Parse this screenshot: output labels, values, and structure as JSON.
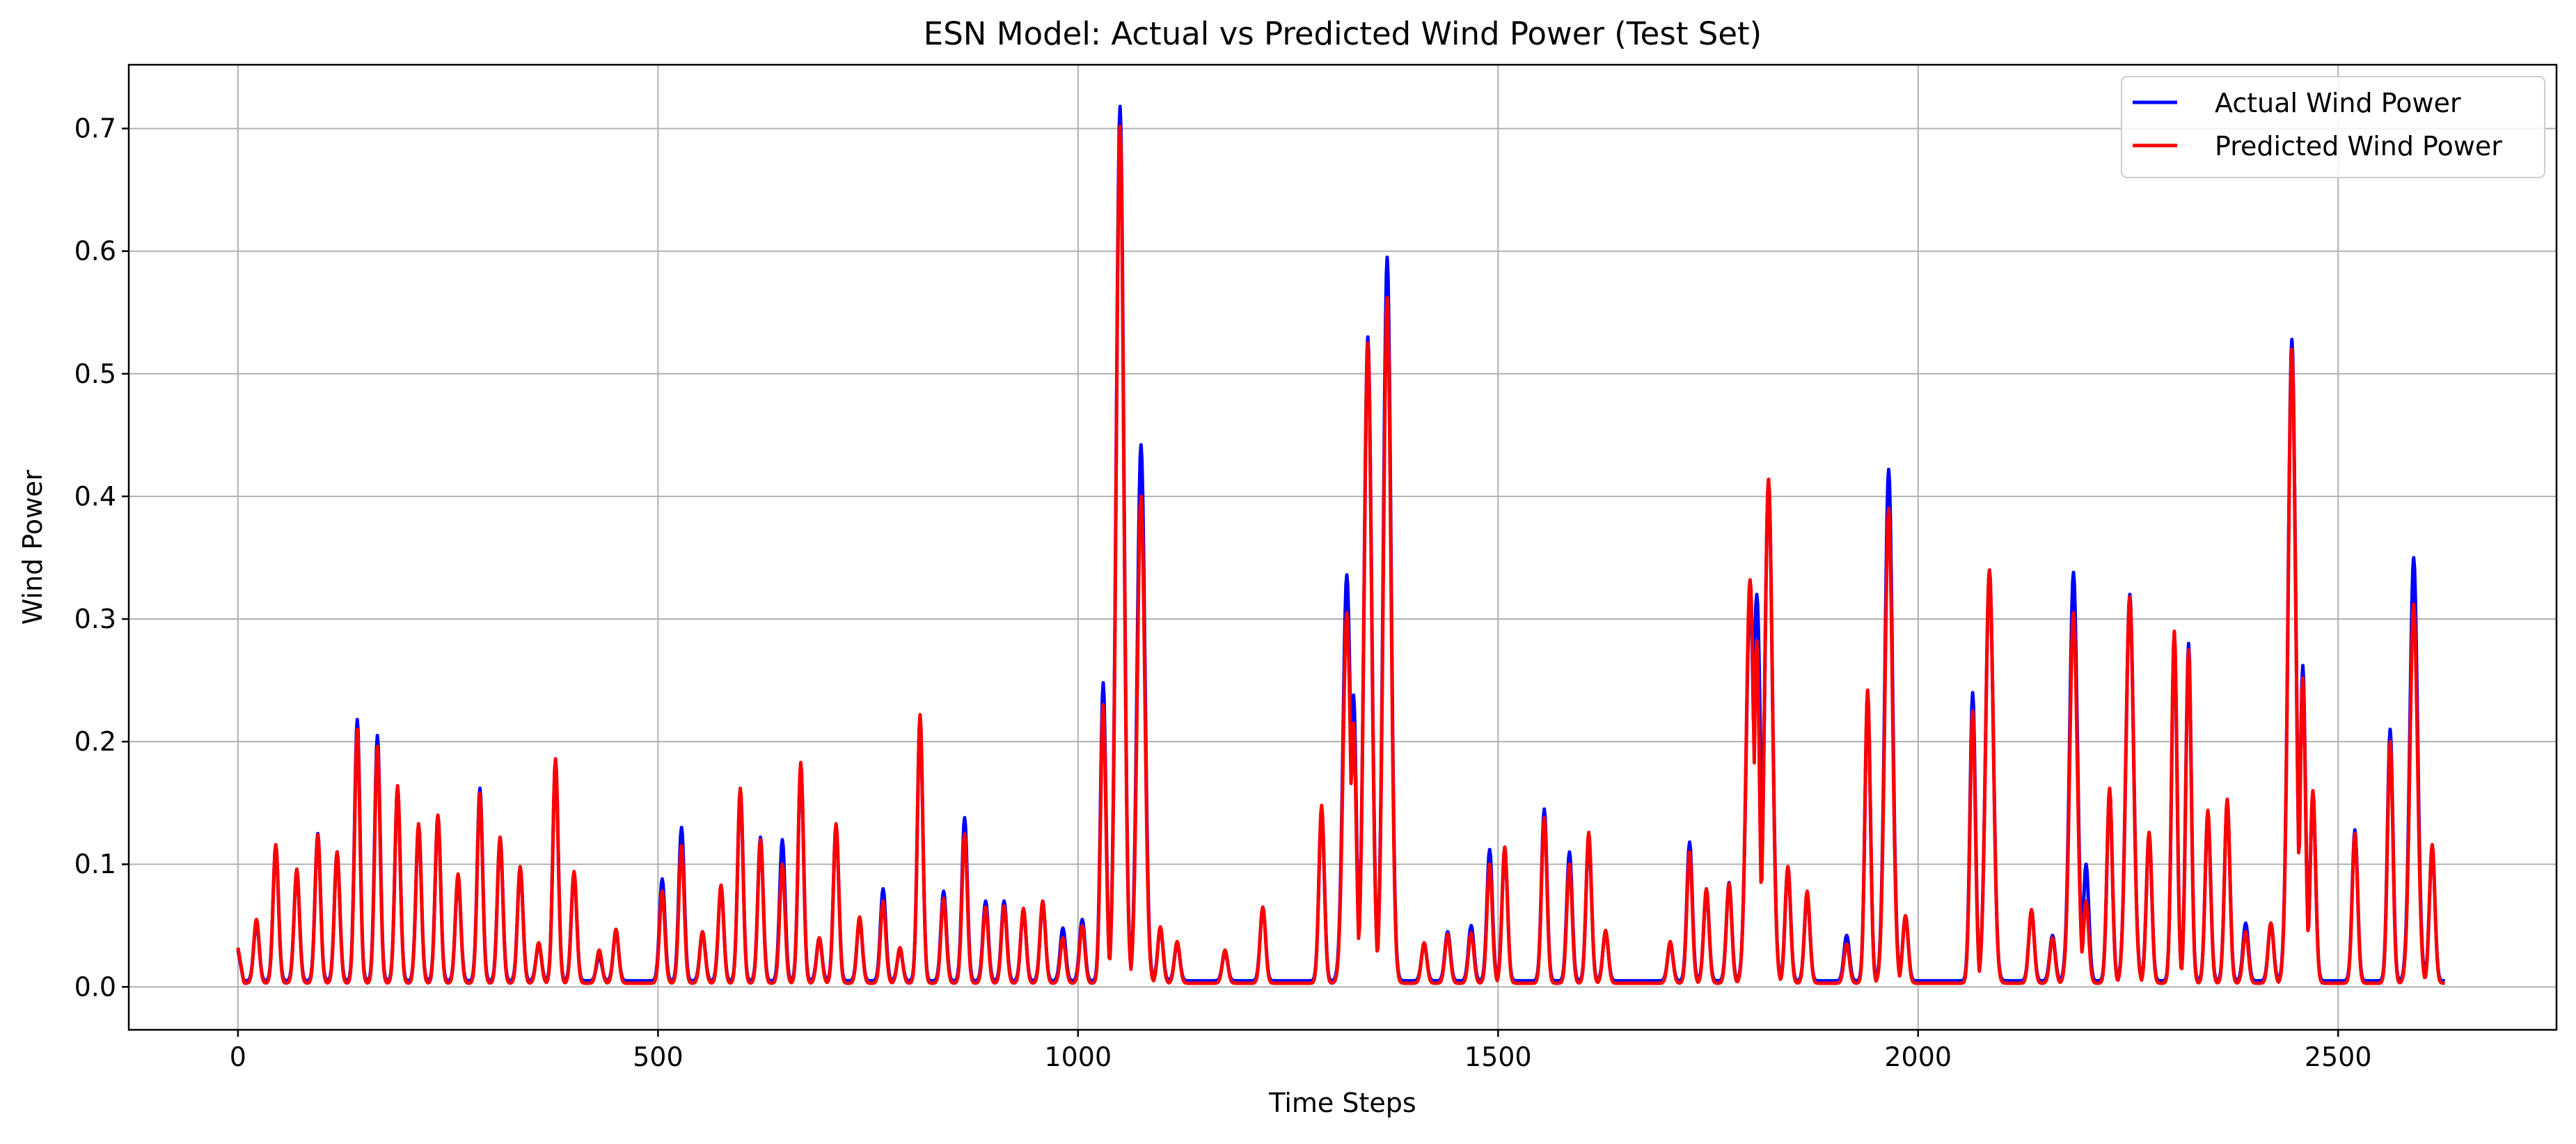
{
  "chart_data": {
    "type": "line",
    "title": "ESN Model: Actual vs Predicted Wind Power (Test Set)",
    "xlabel": "Time Steps",
    "ylabel": "Wind Power",
    "xlim": [
      -130,
      2760
    ],
    "ylim": [
      -0.035,
      0.752
    ],
    "x_ticks": [
      0,
      500,
      1000,
      1500,
      2000,
      2500
    ],
    "y_ticks": [
      0.0,
      0.1,
      0.2,
      0.3,
      0.4,
      0.5,
      0.6,
      0.7
    ],
    "x_tick_labels": [
      "0",
      "500",
      "1000",
      "1500",
      "2000",
      "2500"
    ],
    "y_tick_labels": [
      "0.0",
      "0.1",
      "0.2",
      "0.3",
      "0.4",
      "0.5",
      "0.6",
      "0.7"
    ],
    "grid": true,
    "legend_position": "top-right",
    "n_points": 2628,
    "series": [
      {
        "name": "Actual Wind Power",
        "color": "#0000ff",
        "base_level": 0.005,
        "start_value": 0.03,
        "peaks": [
          [
            22,
            0.052
          ],
          [
            45,
            0.115
          ],
          [
            70,
            0.095
          ],
          [
            95,
            0.125
          ],
          [
            118,
            0.11
          ],
          [
            142,
            0.218
          ],
          [
            166,
            0.205
          ],
          [
            190,
            0.162
          ],
          [
            215,
            0.132
          ],
          [
            238,
            0.14
          ],
          [
            262,
            0.09
          ],
          [
            288,
            0.162
          ],
          [
            312,
            0.122
          ],
          [
            336,
            0.098
          ],
          [
            358,
            0.035
          ],
          [
            378,
            0.185
          ],
          [
            400,
            0.093
          ],
          [
            430,
            0.025
          ],
          [
            450,
            0.045
          ],
          [
            505,
            0.088
          ],
          [
            528,
            0.13
          ],
          [
            553,
            0.045
          ],
          [
            575,
            0.082
          ],
          [
            598,
            0.16
          ],
          [
            622,
            0.122
          ],
          [
            648,
            0.12
          ],
          [
            670,
            0.18
          ],
          [
            692,
            0.04
          ],
          [
            712,
            0.132
          ],
          [
            740,
            0.055
          ],
          [
            768,
            0.08
          ],
          [
            788,
            0.03
          ],
          [
            812,
            0.22
          ],
          [
            840,
            0.078
          ],
          [
            865,
            0.138
          ],
          [
            890,
            0.07
          ],
          [
            912,
            0.07
          ],
          [
            935,
            0.062
          ],
          [
            958,
            0.068
          ],
          [
            982,
            0.048
          ],
          [
            1005,
            0.055
          ],
          [
            1030,
            0.248
          ],
          [
            1050,
            0.718
          ],
          [
            1075,
            0.442
          ],
          [
            1098,
            0.048
          ],
          [
            1118,
            0.035
          ],
          [
            1175,
            0.028
          ],
          [
            1220,
            0.065
          ],
          [
            1290,
            0.145
          ],
          [
            1320,
            0.336
          ],
          [
            1328,
            0.238
          ],
          [
            1345,
            0.53
          ],
          [
            1368,
            0.595
          ],
          [
            1412,
            0.035
          ],
          [
            1440,
            0.045
          ],
          [
            1468,
            0.05
          ],
          [
            1490,
            0.112
          ],
          [
            1508,
            0.112
          ],
          [
            1555,
            0.145
          ],
          [
            1585,
            0.11
          ],
          [
            1608,
            0.122
          ],
          [
            1628,
            0.045
          ],
          [
            1705,
            0.035
          ],
          [
            1728,
            0.118
          ],
          [
            1748,
            0.078
          ],
          [
            1775,
            0.085
          ],
          [
            1800,
            0.32
          ],
          [
            1808,
            0.32
          ],
          [
            1822,
            0.412
          ],
          [
            1845,
            0.098
          ],
          [
            1868,
            0.075
          ],
          [
            1915,
            0.042
          ],
          [
            1940,
            0.24
          ],
          [
            1965,
            0.422
          ],
          [
            1985,
            0.058
          ],
          [
            2065,
            0.24
          ],
          [
            2085,
            0.34
          ],
          [
            2135,
            0.062
          ],
          [
            2160,
            0.042
          ],
          [
            2185,
            0.338
          ],
          [
            2200,
            0.1
          ],
          [
            2228,
            0.16
          ],
          [
            2252,
            0.32
          ],
          [
            2275,
            0.125
          ],
          [
            2305,
            0.285
          ],
          [
            2322,
            0.28
          ],
          [
            2345,
            0.142
          ],
          [
            2368,
            0.152
          ],
          [
            2390,
            0.052
          ],
          [
            2420,
            0.052
          ],
          [
            2445,
            0.528
          ],
          [
            2458,
            0.262
          ],
          [
            2470,
            0.158
          ],
          [
            2520,
            0.128
          ],
          [
            2562,
            0.21
          ],
          [
            2590,
            0.35
          ],
          [
            2612,
            0.115
          ]
        ]
      },
      {
        "name": "Predicted Wind Power",
        "color": "#ff0000",
        "base_level": 0.003,
        "start_value": 0.032,
        "peaks": [
          [
            22,
            0.055
          ],
          [
            45,
            0.116
          ],
          [
            70,
            0.096
          ],
          [
            95,
            0.124
          ],
          [
            118,
            0.11
          ],
          [
            142,
            0.21
          ],
          [
            166,
            0.196
          ],
          [
            190,
            0.164
          ],
          [
            215,
            0.133
          ],
          [
            238,
            0.14
          ],
          [
            262,
            0.092
          ],
          [
            288,
            0.158
          ],
          [
            312,
            0.122
          ],
          [
            336,
            0.098
          ],
          [
            358,
            0.036
          ],
          [
            378,
            0.186
          ],
          [
            400,
            0.094
          ],
          [
            430,
            0.03
          ],
          [
            450,
            0.047
          ],
          [
            505,
            0.078
          ],
          [
            528,
            0.115
          ],
          [
            553,
            0.045
          ],
          [
            575,
            0.083
          ],
          [
            598,
            0.162
          ],
          [
            622,
            0.12
          ],
          [
            648,
            0.1
          ],
          [
            670,
            0.183
          ],
          [
            692,
            0.04
          ],
          [
            712,
            0.133
          ],
          [
            740,
            0.057
          ],
          [
            768,
            0.07
          ],
          [
            788,
            0.032
          ],
          [
            812,
            0.222
          ],
          [
            840,
            0.072
          ],
          [
            865,
            0.125
          ],
          [
            890,
            0.065
          ],
          [
            912,
            0.066
          ],
          [
            935,
            0.064
          ],
          [
            958,
            0.07
          ],
          [
            982,
            0.04
          ],
          [
            1005,
            0.05
          ],
          [
            1030,
            0.23
          ],
          [
            1050,
            0.702
          ],
          [
            1075,
            0.4
          ],
          [
            1098,
            0.049
          ],
          [
            1118,
            0.037
          ],
          [
            1175,
            0.03
          ],
          [
            1220,
            0.065
          ],
          [
            1290,
            0.148
          ],
          [
            1320,
            0.305
          ],
          [
            1328,
            0.215
          ],
          [
            1345,
            0.525
          ],
          [
            1368,
            0.562
          ],
          [
            1412,
            0.036
          ],
          [
            1440,
            0.043
          ],
          [
            1468,
            0.044
          ],
          [
            1490,
            0.1
          ],
          [
            1508,
            0.114
          ],
          [
            1555,
            0.138
          ],
          [
            1585,
            0.1
          ],
          [
            1608,
            0.126
          ],
          [
            1628,
            0.046
          ],
          [
            1705,
            0.037
          ],
          [
            1728,
            0.11
          ],
          [
            1748,
            0.08
          ],
          [
            1775,
            0.084
          ],
          [
            1800,
            0.332
          ],
          [
            1808,
            0.282
          ],
          [
            1822,
            0.414
          ],
          [
            1845,
            0.098
          ],
          [
            1868,
            0.078
          ],
          [
            1915,
            0.035
          ],
          [
            1940,
            0.242
          ],
          [
            1965,
            0.39
          ],
          [
            1985,
            0.058
          ],
          [
            2065,
            0.225
          ],
          [
            2085,
            0.34
          ],
          [
            2135,
            0.063
          ],
          [
            2160,
            0.04
          ],
          [
            2185,
            0.305
          ],
          [
            2200,
            0.07
          ],
          [
            2228,
            0.162
          ],
          [
            2252,
            0.318
          ],
          [
            2275,
            0.126
          ],
          [
            2305,
            0.29
          ],
          [
            2322,
            0.275
          ],
          [
            2345,
            0.144
          ],
          [
            2368,
            0.153
          ],
          [
            2390,
            0.045
          ],
          [
            2420,
            0.052
          ],
          [
            2445,
            0.52
          ],
          [
            2458,
            0.252
          ],
          [
            2470,
            0.16
          ],
          [
            2520,
            0.125
          ],
          [
            2562,
            0.2
          ],
          [
            2590,
            0.312
          ],
          [
            2612,
            0.116
          ]
        ]
      }
    ]
  }
}
